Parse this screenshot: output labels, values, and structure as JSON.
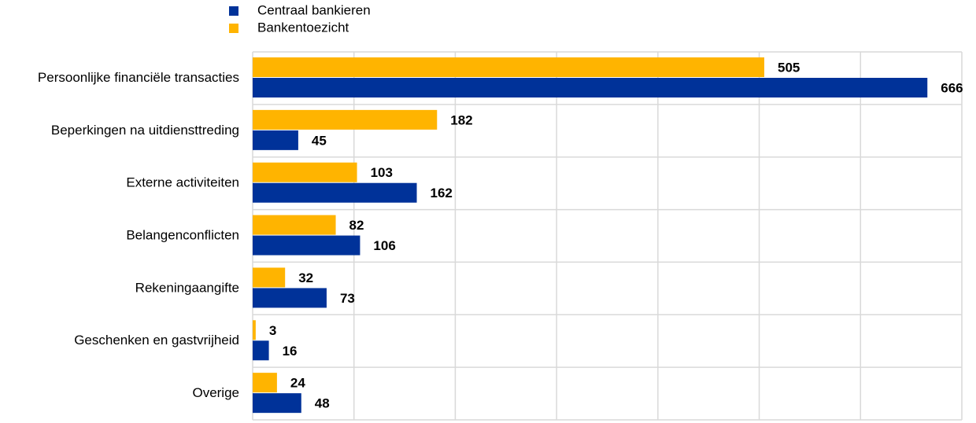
{
  "chart_data": {
    "type": "bar",
    "orientation": "horizontal",
    "categories": [
      "Persoonlijke financiële transacties",
      "Beperkingen na uitdiensttreding",
      "Externe activiteiten",
      "Belangenconflicten",
      "Rekeningaangifte",
      "Geschenken en gastvrijheid",
      "Overige"
    ],
    "series": [
      {
        "name": "Centraal bankieren",
        "color": "#003299",
        "values": [
          666,
          45,
          162,
          106,
          73,
          16,
          48
        ]
      },
      {
        "name": "Bankentoezicht",
        "color": "#ffb400",
        "values": [
          505,
          182,
          103,
          82,
          32,
          3,
          24
        ]
      }
    ],
    "xlim": [
      0,
      700
    ],
    "xticks": [
      0,
      100,
      200,
      300,
      400,
      500,
      600,
      700
    ],
    "grid": true
  }
}
